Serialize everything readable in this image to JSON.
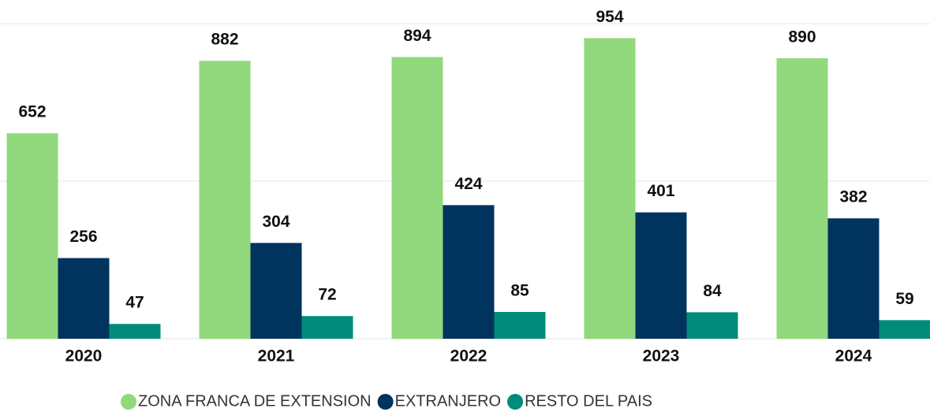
{
  "chart_data": {
    "type": "bar",
    "categories": [
      "2020",
      "2021",
      "2022",
      "2023",
      "2024"
    ],
    "series": [
      {
        "name": "ZONA FRANCA DE EXTENSION",
        "color": "#92d87c",
        "values": [
          652,
          882,
          894,
          954,
          890
        ]
      },
      {
        "name": "EXTRANJERO",
        "color": "#00335e",
        "values": [
          256,
          304,
          424,
          401,
          382
        ]
      },
      {
        "name": "RESTO DEL PAIS",
        "color": "#008b7b",
        "values": [
          47,
          72,
          85,
          84,
          59
        ]
      }
    ],
    "ylim": [
      0,
      1000
    ],
    "yticks": [
      0,
      500,
      1000
    ],
    "grid": true
  }
}
